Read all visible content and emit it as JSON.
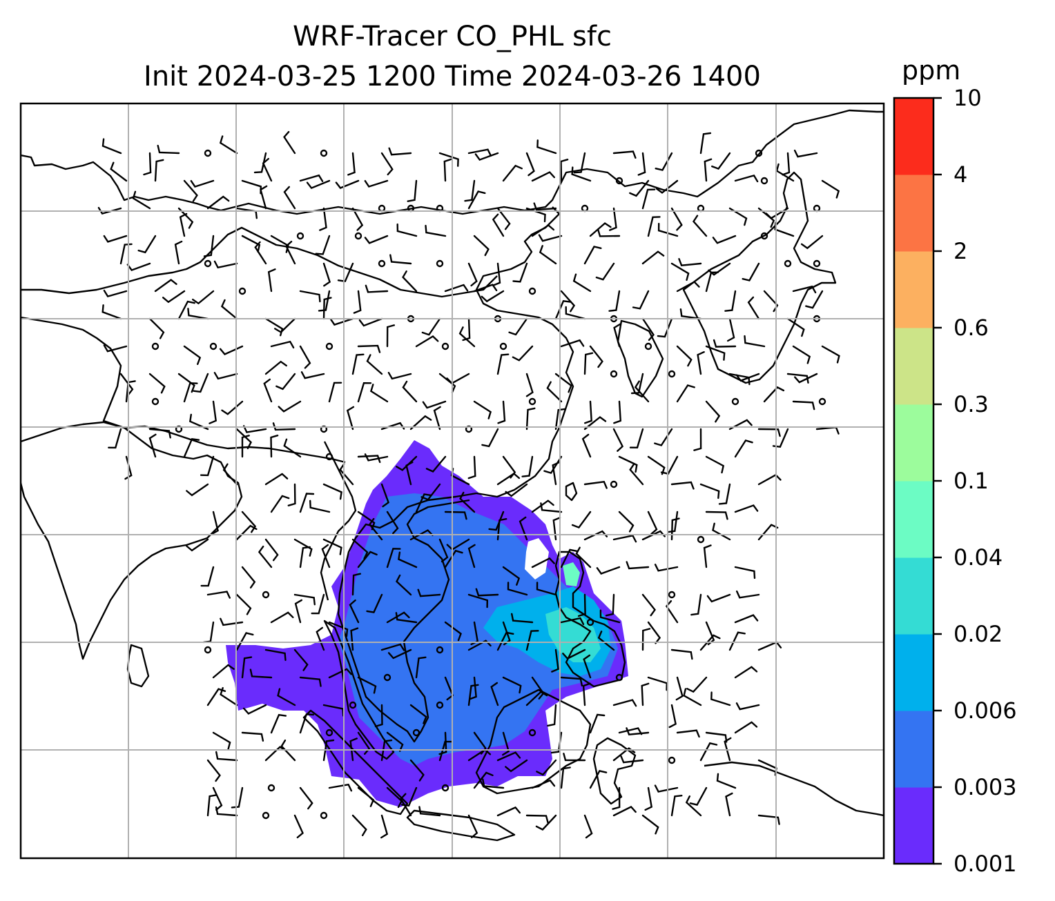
{
  "title": {
    "line1": "WRF-Tracer CO_PHL sfc",
    "line2": "Init 2024-03-25 1200 Time 2024-03-26 1400"
  },
  "colorbar": {
    "unit": "ppm",
    "levels": [
      "0.001",
      "0.003",
      "0.006",
      "0.02",
      "0.04",
      "0.1",
      "0.3",
      "0.6",
      "2",
      "4",
      "10"
    ],
    "colors": [
      "#6a2cfc",
      "#3474f2",
      "#00b0ec",
      "#34dcd4",
      "#6cfcc4",
      "#9cfc9c",
      "#cce488",
      "#fcb060",
      "#fc7444",
      "#fc2c1c"
    ]
  },
  "map": {
    "plume_colors": {
      "level1": "#6a2cfc",
      "level2": "#3474f2",
      "level3": "#00b0ec",
      "level4": "#34dcd4",
      "level5": "#6cfcc4"
    },
    "gridline_color": "#b0b0b0",
    "coastline_color": "#000000"
  }
}
